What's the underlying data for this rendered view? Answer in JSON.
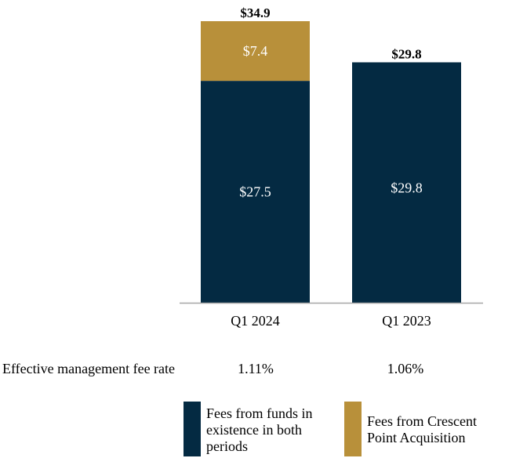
{
  "chart_data": {
    "type": "bar",
    "stacked": true,
    "categories": [
      "Q1 2024",
      "Q1 2023"
    ],
    "series": [
      {
        "name": "Fees from funds in existence in both periods",
        "color": "#042a42",
        "values": [
          27.5,
          29.8
        ],
        "labels": [
          "$27.5",
          "$29.8"
        ]
      },
      {
        "name": "Fees from Crescent Point Acquisition",
        "color": "#b8903a",
        "values": [
          7.4,
          0
        ],
        "labels": [
          "$7.4",
          ""
        ]
      }
    ],
    "totals": [
      34.9,
      29.8
    ],
    "total_labels": [
      "$34.9",
      "$29.8"
    ],
    "ylim": [
      0,
      34.9
    ],
    "grid": false,
    "legend_position": "bottom"
  },
  "fee_rate": {
    "label": "Effective management fee rate",
    "values": [
      "1.11%",
      "1.06%"
    ]
  },
  "legend": [
    {
      "text_lines": [
        "Fees from funds in",
        "existence in both",
        "periods"
      ],
      "color": "#042a42"
    },
    {
      "text_lines": [
        "Fees from Crescent",
        "Point Acquisition"
      ],
      "color": "#b8903a"
    }
  ]
}
